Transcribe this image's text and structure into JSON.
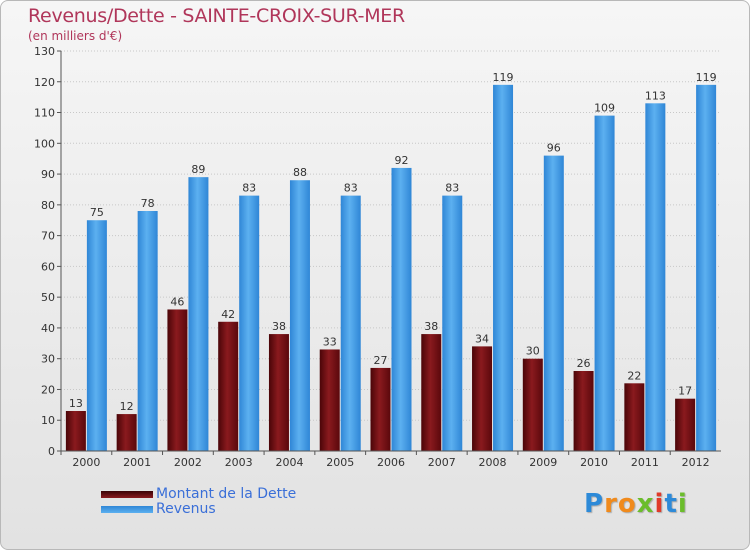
{
  "title": "Revenus/Dette - SAINTE-CROIX-SUR-MER",
  "subtitle": "(en milliers d'€)",
  "chart_data": {
    "type": "bar",
    "title": "Revenus/Dette - SAINTE-CROIX-SUR-MER",
    "ylabel": "(en milliers d'€)",
    "xlabel": "",
    "ylim": [
      0,
      130
    ],
    "yticks": [
      0,
      10,
      20,
      30,
      40,
      50,
      60,
      70,
      80,
      90,
      100,
      110,
      120,
      130
    ],
    "grid": true,
    "categories": [
      "2000",
      "2001",
      "2002",
      "2003",
      "2004",
      "2005",
      "2006",
      "2007",
      "2008",
      "2009",
      "2010",
      "2011",
      "2012"
    ],
    "series": [
      {
        "name": "Montant de la Dette",
        "color": "#7a0e12",
        "values": [
          13,
          12,
          46,
          42,
          38,
          33,
          27,
          38,
          34,
          30,
          26,
          22,
          17
        ]
      },
      {
        "name": "Revenus",
        "color": "#3f9ae6",
        "values": [
          75,
          78,
          89,
          83,
          88,
          83,
          92,
          83,
          119,
          96,
          109,
          113,
          119
        ]
      }
    ],
    "legend_position": "bottom-left"
  },
  "logo": {
    "letters": [
      "P",
      "r",
      "o",
      "x",
      "i",
      "t",
      "i"
    ],
    "colors": [
      "#2d8ad8",
      "#f08a1c",
      "#f08a1c",
      "#6bbd2c",
      "#e03a2a",
      "#2d8ad8",
      "#6bbd2c"
    ]
  }
}
